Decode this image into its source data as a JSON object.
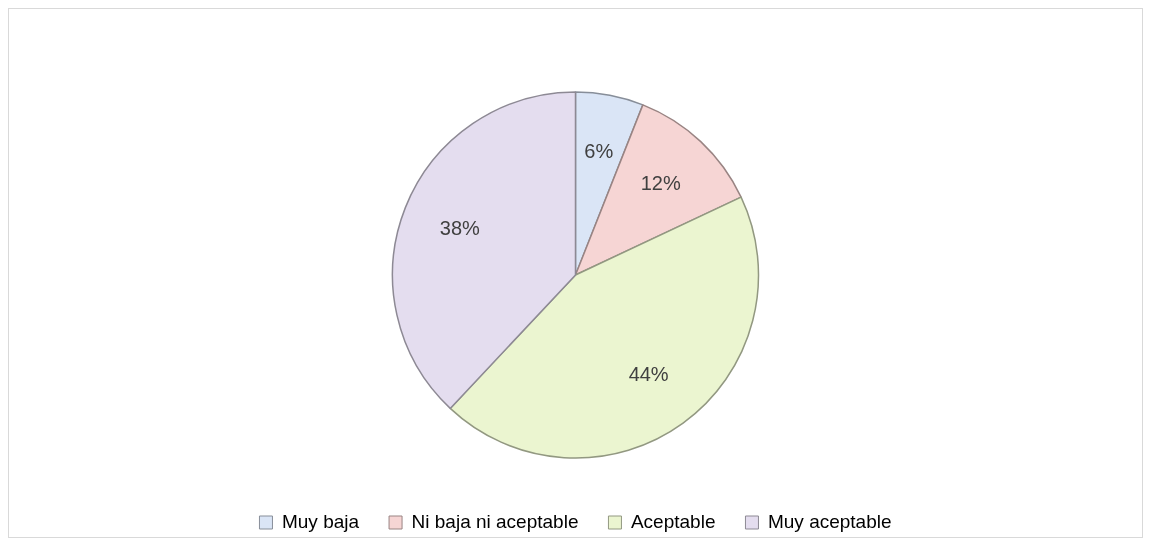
{
  "chart_data": {
    "type": "pie",
    "categories": [
      "Muy baja",
      "Ni baja ni aceptable",
      "Aceptable",
      "Muy aceptable"
    ],
    "values": [
      6,
      12,
      44,
      38
    ],
    "colors": [
      "#dae5f6",
      "#f6d5d4",
      "#ebf5d0",
      "#e4ddef"
    ],
    "value_labels": [
      "6%",
      "12%",
      "44%",
      "38%"
    ],
    "legend": "bottom"
  }
}
